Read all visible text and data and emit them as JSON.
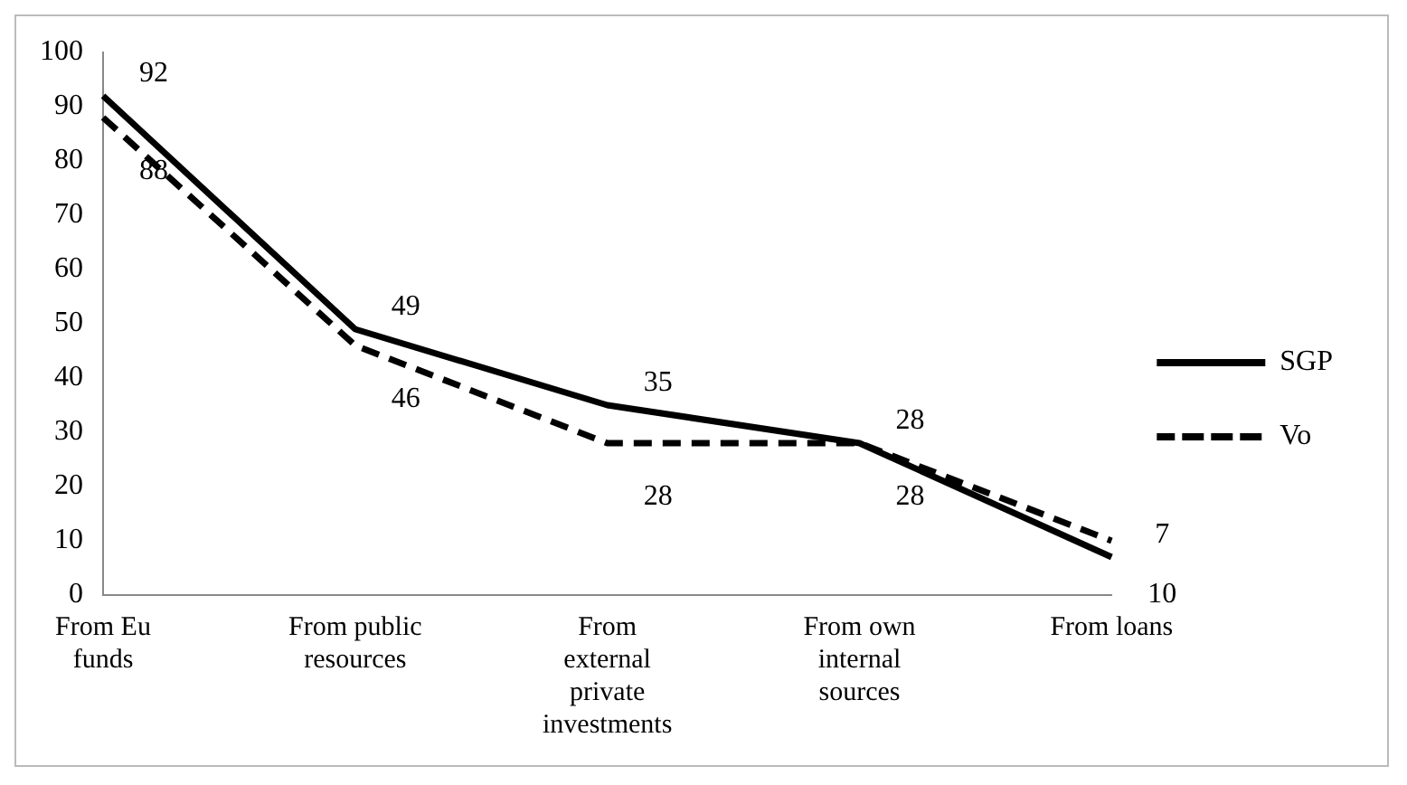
{
  "chart_data": {
    "type": "line",
    "categories": [
      "From Eu funds",
      "From public resources",
      "From external private investments",
      "From own internal sources",
      "From loans"
    ],
    "series": [
      {
        "name": "SGP",
        "color": "#000000",
        "line_style": "solid",
        "values": [
          92,
          49,
          35,
          28,
          7
        ]
      },
      {
        "name": "Vo",
        "color": "#000000",
        "line_style": "dashed",
        "values": [
          88,
          46,
          28,
          28,
          10
        ]
      }
    ],
    "ylim": [
      0,
      100
    ],
    "yticks": [
      0,
      10,
      20,
      30,
      40,
      50,
      60,
      70,
      80,
      90,
      100
    ],
    "grid": false,
    "legend": "right",
    "data_labels": true,
    "marker": "none"
  }
}
